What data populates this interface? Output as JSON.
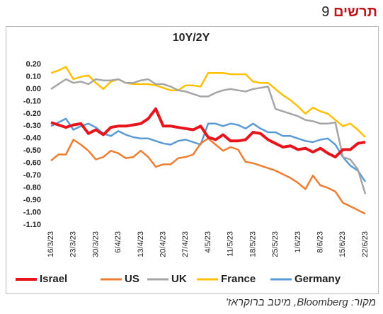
{
  "figure_word": "תרשים",
  "figure_number": "9",
  "source": "מקור: Bloomberg, מיטב ברוקראז'",
  "chart_data": {
    "type": "line",
    "title": "10Y/2Y",
    "categories": [
      "16/3/23",
      null,
      null,
      "23/3/23",
      null,
      null,
      "30/3/23",
      null,
      null,
      "6/4/23",
      null,
      null,
      "13/4/23",
      null,
      null,
      "20/4/23",
      null,
      null,
      "27/4/23",
      null,
      null,
      "4/5/23",
      null,
      null,
      "11/5/23",
      null,
      null,
      "18/5/23",
      null,
      null,
      "25/5/23",
      null,
      null,
      "1/6/23",
      null,
      null,
      "8/6/23",
      null,
      null,
      "15/6/23",
      null,
      null,
      "22/6/23"
    ],
    "ylim": [
      -1.1,
      0.2
    ],
    "yticks": [
      {
        "value": 0.2,
        "label": "0.20"
      },
      {
        "value": 0.1,
        "label": "0.10"
      },
      {
        "value": 0,
        "label": "0.00"
      },
      {
        "value": -0.1,
        "label": "-0.10"
      },
      {
        "value": -0.2,
        "label": "-0.20"
      },
      {
        "value": -0.3,
        "label": "-0.30"
      },
      {
        "value": -0.4,
        "label": "-0.40"
      },
      {
        "value": -0.5,
        "label": "-0.50"
      },
      {
        "value": -0.6,
        "label": "-0.60"
      },
      {
        "value": -0.7,
        "label": "-0.70"
      },
      {
        "value": -0.8,
        "label": "-0.80"
      },
      {
        "value": -0.9,
        "label": "-0.90"
      },
      {
        "value": -1,
        "label": "-1.00"
      },
      {
        "value": -1.1,
        "label": "-1.10"
      }
    ],
    "grid": false,
    "legend": "bottom",
    "series": [
      {
        "name": "Israel",
        "color": "#e8141c",
        "values": [
          -0.27,
          -0.29,
          -0.31,
          -0.29,
          -0.28,
          -0.36,
          -0.33,
          -0.37,
          -0.31,
          -0.3,
          -0.3,
          -0.29,
          -0.28,
          -0.24,
          -0.16,
          -0.3,
          -0.3,
          -0.31,
          -0.32,
          -0.33,
          -0.3,
          -0.39,
          -0.41,
          -0.37,
          -0.42,
          -0.42,
          -0.41,
          -0.35,
          -0.36,
          -0.41,
          -0.44,
          -0.47,
          -0.46,
          -0.49,
          -0.48,
          -0.51,
          -0.48,
          -0.52,
          -0.55,
          -0.49,
          -0.49,
          -0.44,
          -0.43
        ]
      },
      {
        "name": "US",
        "color": "#ed7d31",
        "values": [
          -0.58,
          -0.53,
          -0.53,
          -0.41,
          -0.45,
          -0.5,
          -0.57,
          -0.55,
          -0.5,
          -0.52,
          -0.56,
          -0.55,
          -0.5,
          -0.55,
          -0.63,
          -0.61,
          -0.61,
          -0.56,
          -0.55,
          -0.53,
          -0.44,
          -0.4,
          -0.45,
          -0.5,
          -0.47,
          -0.49,
          -0.59,
          -0.6,
          -0.62,
          -0.64,
          -0.66,
          -0.69,
          -0.72,
          -0.76,
          -0.81,
          -0.7,
          -0.78,
          -0.8,
          -0.83,
          -0.92,
          -0.95,
          -0.98,
          -1.01
        ]
      },
      {
        "name": "UK",
        "color": "#a5a5a5",
        "values": [
          0.0,
          0.04,
          0.08,
          0.05,
          0.06,
          0.04,
          0.08,
          0.07,
          0.07,
          0.08,
          0.05,
          0.05,
          0.07,
          0.08,
          0.04,
          0.04,
          0.02,
          -0.01,
          -0.02,
          -0.04,
          -0.06,
          -0.06,
          -0.03,
          -0.01,
          0.0,
          -0.01,
          -0.02,
          0.0,
          0.01,
          0.02,
          -0.16,
          -0.18,
          -0.2,
          -0.22,
          -0.25,
          -0.26,
          -0.28,
          -0.28,
          -0.27,
          -0.55,
          -0.57,
          -0.65,
          -0.85
        ]
      },
      {
        "name": "France",
        "color": "#ffc000",
        "values": [
          0.13,
          0.15,
          0.18,
          0.08,
          0.1,
          0.11,
          0.05,
          0.0,
          0.06,
          0.08,
          0.05,
          0.04,
          0.04,
          0.04,
          0.03,
          0.01,
          -0.01,
          -0.01,
          0.03,
          0.03,
          0.02,
          0.13,
          0.13,
          0.13,
          0.12,
          0.12,
          0.12,
          0.06,
          0.05,
          0.05,
          0.0,
          -0.05,
          -0.09,
          -0.14,
          -0.2,
          -0.15,
          -0.18,
          -0.2,
          -0.25,
          -0.3,
          -0.28,
          -0.33,
          -0.39
        ]
      },
      {
        "name": "Germany",
        "color": "#5b9bd5",
        "values": [
          -0.3,
          -0.27,
          -0.24,
          -0.33,
          -0.3,
          -0.28,
          -0.31,
          -0.36,
          -0.38,
          -0.34,
          -0.37,
          -0.39,
          -0.4,
          -0.4,
          -0.42,
          -0.44,
          -0.45,
          -0.42,
          -0.41,
          -0.43,
          -0.45,
          -0.28,
          -0.28,
          -0.3,
          -0.28,
          -0.29,
          -0.32,
          -0.28,
          -0.32,
          -0.35,
          -0.35,
          -0.38,
          -0.38,
          -0.4,
          -0.42,
          -0.43,
          -0.41,
          -0.4,
          -0.45,
          -0.55,
          -0.62,
          -0.66,
          -0.75
        ]
      }
    ]
  }
}
